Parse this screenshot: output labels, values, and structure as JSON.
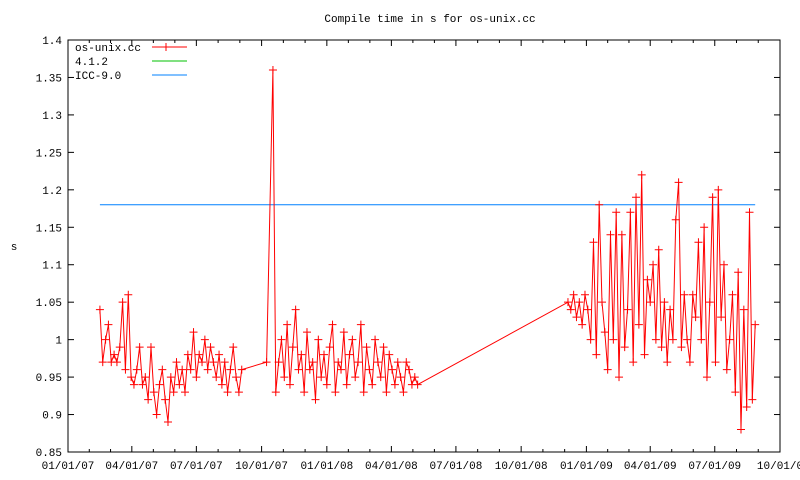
{
  "chart_data": {
    "type": "line",
    "title": "Compile time in s for os-unix.cc",
    "xlabel": "",
    "ylabel": "s",
    "x_unit": "days since 01/01/07",
    "xlim_days": [
      0,
      1004
    ],
    "ylim": [
      0.85,
      1.4
    ],
    "y_ticks": [
      "0.85",
      "0.9",
      "0.95",
      "1",
      "1.05",
      "1.1",
      "1.15",
      "1.2",
      "1.25",
      "1.3",
      "1.35",
      "1.4"
    ],
    "y_tick_values": [
      0.85,
      0.9,
      0.95,
      1.0,
      1.05,
      1.1,
      1.15,
      1.2,
      1.25,
      1.3,
      1.35,
      1.4
    ],
    "x_ticks": [
      "01/01/07",
      "04/01/07",
      "07/01/07",
      "10/01/07",
      "01/01/08",
      "04/01/08",
      "07/01/08",
      "10/01/08",
      "01/01/09",
      "04/01/09",
      "07/01/09",
      "10/01/0"
    ],
    "x_tick_days": [
      0,
      90,
      181,
      273,
      365,
      456,
      547,
      639,
      731,
      821,
      912,
      1004
    ],
    "grid": false,
    "legend_position": "top-left",
    "legend": [
      {
        "label": "os-unix.cc",
        "color": "#ff0000",
        "marker": "cross"
      },
      {
        "label": "4.1.2",
        "color": "#00c000"
      },
      {
        "label": "ICC-9.0",
        "color": "#0080ff"
      }
    ],
    "reference_lines": [
      {
        "name": "ICC-9.0",
        "value": 1.18,
        "from_day": 45,
        "to_day": 969,
        "color": "#0080ff"
      }
    ],
    "series": [
      {
        "name": "os-unix.cc",
        "color": "#ff0000",
        "segments": [
          {
            "start_day": 45,
            "step_days": 4,
            "values": [
              1.04,
              0.97,
              1.0,
              1.02,
              0.97,
              0.98,
              0.97,
              0.99,
              1.05,
              0.96,
              1.06,
              0.95,
              0.94,
              0.96,
              0.99,
              0.94,
              0.95,
              0.92,
              0.99,
              0.93,
              0.9,
              0.94,
              0.96,
              0.92,
              0.89,
              0.95,
              0.93,
              0.97,
              0.94,
              0.96,
              0.93,
              0.98,
              0.96,
              1.01,
              0.95,
              0.98,
              0.97,
              1.0,
              0.96,
              0.99,
              0.97,
              0.95,
              0.98,
              0.94,
              0.97,
              0.93,
              0.96,
              0.99,
              0.95,
              0.93,
              0.96
            ]
          },
          {
            "start_day": 280,
            "step_days": 9,
            "values": [
              0.97,
              1.36
            ]
          },
          {
            "start_day": 293,
            "step_days": 4,
            "values": [
              0.93,
              0.97,
              1.0,
              0.95,
              1.02,
              0.94,
              0.99,
              1.04,
              0.96,
              0.98,
              0.93,
              1.01,
              0.96,
              0.97,
              0.92,
              1.0,
              0.95,
              0.98,
              0.94,
              0.99,
              1.02,
              0.93,
              0.97,
              0.96,
              1.01,
              0.94,
              0.98,
              1.0,
              0.95,
              0.97,
              1.02,
              0.93,
              0.99,
              0.96,
              0.94,
              1.0,
              0.97,
              0.95,
              0.99,
              0.93,
              0.98,
              0.96,
              0.94,
              0.97,
              0.95,
              0.93,
              0.97,
              0.96,
              0.94,
              0.95,
              0.94
            ]
          },
          {
            "start_day": 705,
            "step_days": 4,
            "values": [
              1.05,
              1.04,
              1.06,
              1.03,
              1.05,
              1.02,
              1.06,
              1.04,
              1.0,
              1.13,
              0.98,
              1.18,
              1.05,
              1.01,
              0.96,
              1.14,
              1.0,
              1.17,
              0.95,
              1.14,
              0.99,
              1.04,
              1.17,
              0.97,
              1.19,
              1.02,
              1.22,
              0.98,
              1.08,
              1.05,
              1.1,
              1.0,
              1.12,
              0.99,
              1.05,
              0.97,
              1.04,
              1.0,
              1.16,
              1.21,
              0.99,
              1.06,
              1.0,
              0.97,
              1.06,
              1.03,
              1.13,
              1.0,
              1.15,
              0.95,
              1.05,
              1.19,
              0.97,
              1.2,
              1.03,
              1.1,
              0.96,
              1.0,
              1.06,
              0.93,
              1.09,
              0.88,
              1.04,
              0.91,
              1.17,
              0.92,
              1.02
            ]
          }
        ]
      }
    ]
  }
}
